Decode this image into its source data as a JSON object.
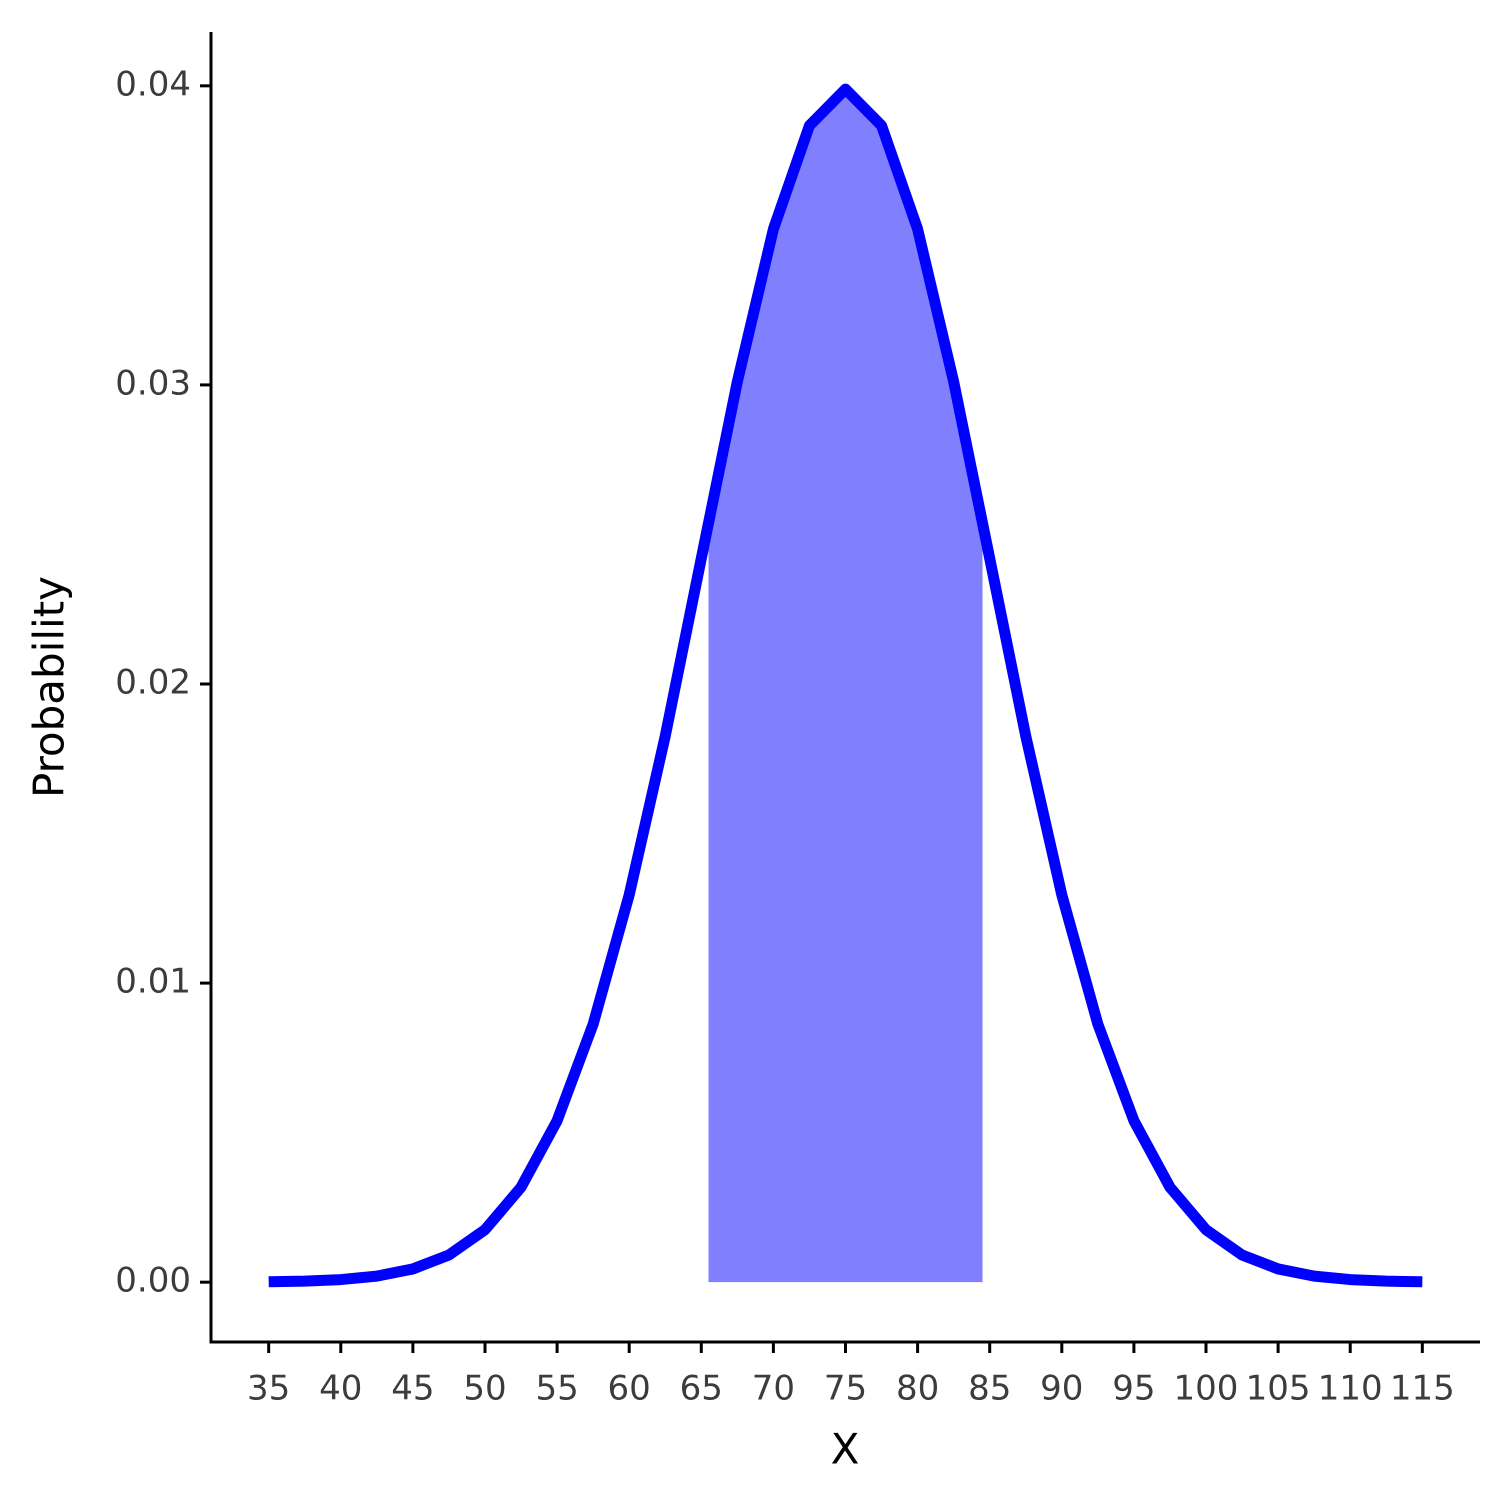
{
  "chart_data": {
    "type": "line",
    "x_label": "X",
    "y_label": "Probability",
    "x": [
      35,
      37.5,
      40,
      42.5,
      45,
      47.5,
      50,
      52.5,
      55,
      57.5,
      60,
      62.5,
      65,
      67.5,
      70,
      72.5,
      75,
      77.5,
      80,
      82.5,
      85,
      87.5,
      90,
      92.5,
      95,
      97.5,
      100,
      102.5,
      105,
      107.5,
      110,
      112.5,
      115
    ],
    "values": [
      1.34e-05,
      3.53e-05,
      8.73e-05,
      0.000203,
      0.000443,
      0.000909,
      0.001753,
      0.003174,
      0.005399,
      0.008628,
      0.01295,
      0.01826,
      0.0242,
      0.03011,
      0.03521,
      0.03867,
      0.03989,
      0.03867,
      0.03521,
      0.03011,
      0.0242,
      0.01826,
      0.01295,
      0.008628,
      0.005399,
      0.003174,
      0.001753,
      0.000909,
      0.000443,
      0.000203,
      8.73e-05,
      3.53e-05,
      1.34e-05
    ],
    "color": "#0000ff",
    "shade": {
      "x": [
        65.5,
        67.5,
        70,
        72.5,
        75,
        77.5,
        80,
        82.5,
        84.5
      ],
      "values": [
        0.02541,
        0.03011,
        0.03521,
        0.03867,
        0.03989,
        0.03867,
        0.03521,
        0.03011,
        0.02541
      ],
      "color": "#8080ff"
    },
    "xlim": [
      31,
      119
    ],
    "ylim": [
      -0.002,
      0.0418
    ],
    "xticks": [
      35,
      40,
      45,
      50,
      55,
      60,
      65,
      70,
      75,
      80,
      85,
      90,
      95,
      100,
      105,
      110,
      115
    ],
    "yticks": [
      {
        "value": 0,
        "label": "0.00"
      },
      0.01,
      0.02,
      0.03,
      0.04
    ]
  }
}
